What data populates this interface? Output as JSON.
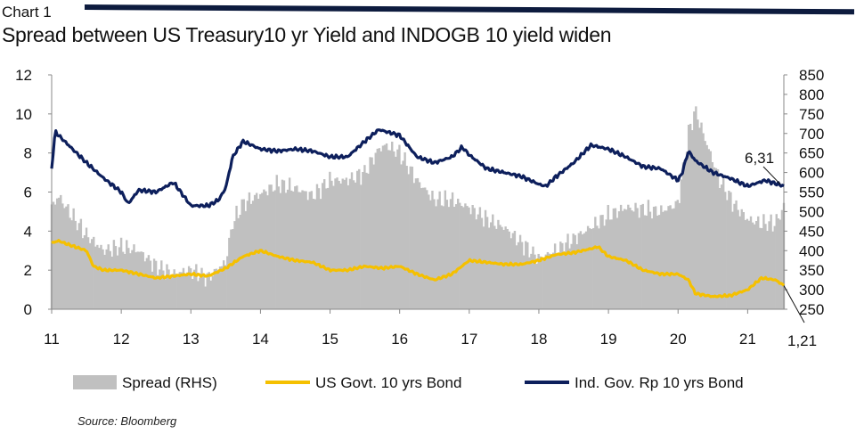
{
  "header": {
    "label": "Chart 1",
    "title": "Spread between US Treasury10 yr Yield and INDOGB 10 yield widen"
  },
  "source": "Source: Bloomberg",
  "colors": {
    "spread": "#c0c0c0",
    "us": "#f5c000",
    "ind": "#0d1f5c",
    "axis": "#888888",
    "rule": "#0d1b3e"
  },
  "chart_data": {
    "type": "line",
    "title": "Spread between US Treasury10 yr Yield and INDOGB 10 yield widen",
    "x_ticks": [
      "11",
      "12",
      "13",
      "14",
      "15",
      "16",
      "17",
      "18",
      "19",
      "20",
      "21"
    ],
    "x_range": [
      2011.0,
      2021.52
    ],
    "y_left": {
      "min": 0,
      "max": 12,
      "ticks": [
        "0",
        "2",
        "4",
        "6",
        "8",
        "10",
        "12"
      ]
    },
    "y_right": {
      "min": 250,
      "max": 850,
      "ticks": [
        "250",
        "300",
        "350",
        "400",
        "450",
        "500",
        "550",
        "600",
        "650",
        "700",
        "750",
        "800",
        "850"
      ]
    },
    "legend": {
      "position": "bottom",
      "entries": [
        "Spread (RHS)",
        "US Govt. 10 yrs Bond",
        "Ind. Gov. Rp 10 yrs Bond"
      ]
    },
    "annotations": [
      {
        "text": "6,31",
        "series": "Ind. Gov. Rp 10 yrs Bond",
        "x": 2021.52,
        "y": 6.31
      },
      {
        "text": "1,21",
        "series": "US Govt. 10 yrs Bond",
        "x": 2021.52,
        "y": 1.21
      }
    ],
    "series": [
      {
        "name": "Spread (RHS)",
        "type": "area",
        "axis": "right",
        "x": [
          2011.0,
          2011.1,
          2011.25,
          2011.5,
          2011.75,
          2012.0,
          2012.25,
          2012.5,
          2012.75,
          2013.0,
          2013.25,
          2013.5,
          2013.6,
          2013.75,
          2014.0,
          2014.25,
          2014.5,
          2014.75,
          2015.0,
          2015.25,
          2015.5,
          2015.7,
          2015.8,
          2016.0,
          2016.25,
          2016.5,
          2016.75,
          2017.0,
          2017.25,
          2017.5,
          2017.75,
          2018.0,
          2018.25,
          2018.5,
          2018.75,
          2019.0,
          2019.25,
          2019.5,
          2019.75,
          2020.0,
          2020.15,
          2020.25,
          2020.4,
          2020.6,
          2020.8,
          2021.0,
          2021.2,
          2021.4,
          2021.52
        ],
        "values": [
          510,
          540,
          500,
          440,
          400,
          410,
          400,
          360,
          340,
          350,
          330,
          370,
          470,
          520,
          545,
          570,
          560,
          540,
          580,
          580,
          600,
          660,
          670,
          650,
          580,
          530,
          530,
          510,
          480,
          460,
          420,
          380,
          400,
          430,
          460,
          490,
          510,
          505,
          500,
          520,
          700,
          760,
          680,
          580,
          520,
          480,
          470,
          470,
          510
        ]
      },
      {
        "name": "US Govt. 10 yrs Bond",
        "type": "line",
        "axis": "left",
        "x": [
          2011.0,
          2011.1,
          2011.25,
          2011.5,
          2011.6,
          2011.75,
          2012.0,
          2012.25,
          2012.5,
          2012.75,
          2013.0,
          2013.25,
          2013.5,
          2013.75,
          2014.0,
          2014.25,
          2014.5,
          2014.75,
          2015.0,
          2015.25,
          2015.5,
          2015.75,
          2016.0,
          2016.25,
          2016.5,
          2016.75,
          2017.0,
          2017.25,
          2017.5,
          2017.75,
          2018.0,
          2018.25,
          2018.5,
          2018.75,
          2018.85,
          2019.0,
          2019.25,
          2019.5,
          2019.75,
          2020.0,
          2020.15,
          2020.25,
          2020.5,
          2020.75,
          2021.0,
          2021.2,
          2021.4,
          2021.52
        ],
        "values": [
          3.4,
          3.5,
          3.3,
          3.0,
          2.2,
          2.0,
          2.0,
          1.8,
          1.6,
          1.7,
          1.8,
          1.7,
          2.1,
          2.7,
          3.0,
          2.7,
          2.5,
          2.4,
          2.0,
          2.0,
          2.2,
          2.1,
          2.2,
          1.8,
          1.5,
          1.8,
          2.5,
          2.4,
          2.3,
          2.3,
          2.5,
          2.8,
          2.9,
          3.1,
          3.2,
          2.7,
          2.5,
          2.0,
          1.8,
          1.8,
          1.5,
          0.8,
          0.65,
          0.7,
          1.0,
          1.6,
          1.5,
          1.21
        ]
      },
      {
        "name": "Ind. Gov. Rp 10 yrs Bond",
        "type": "line",
        "axis": "left",
        "x": [
          2011.0,
          2011.05,
          2011.1,
          2011.3,
          2011.5,
          2011.75,
          2012.0,
          2012.1,
          2012.25,
          2012.5,
          2012.75,
          2013.0,
          2013.25,
          2013.4,
          2013.5,
          2013.6,
          2013.75,
          2014.0,
          2014.25,
          2014.5,
          2014.75,
          2015.0,
          2015.25,
          2015.5,
          2015.7,
          2015.8,
          2016.0,
          2016.25,
          2016.5,
          2016.75,
          2016.9,
          2017.0,
          2017.25,
          2017.5,
          2017.75,
          2018.0,
          2018.1,
          2018.25,
          2018.5,
          2018.75,
          2019.0,
          2019.25,
          2019.5,
          2019.75,
          2020.0,
          2020.05,
          2020.15,
          2020.25,
          2020.5,
          2020.75,
          2021.0,
          2021.25,
          2021.52
        ],
        "values": [
          7.2,
          9.1,
          8.9,
          8.2,
          7.5,
          6.7,
          6.0,
          5.4,
          6.1,
          6.0,
          6.5,
          5.3,
          5.3,
          5.6,
          6.2,
          7.8,
          8.6,
          8.2,
          8.1,
          8.2,
          8.1,
          7.8,
          7.8,
          8.6,
          9.2,
          9.1,
          8.9,
          7.8,
          7.5,
          7.8,
          8.3,
          7.9,
          7.2,
          7.0,
          6.8,
          6.4,
          6.3,
          6.8,
          7.5,
          8.4,
          8.2,
          7.8,
          7.3,
          7.2,
          6.6,
          6.9,
          8.1,
          7.6,
          7.0,
          6.7,
          6.3,
          6.6,
          6.31
        ]
      }
    ]
  }
}
